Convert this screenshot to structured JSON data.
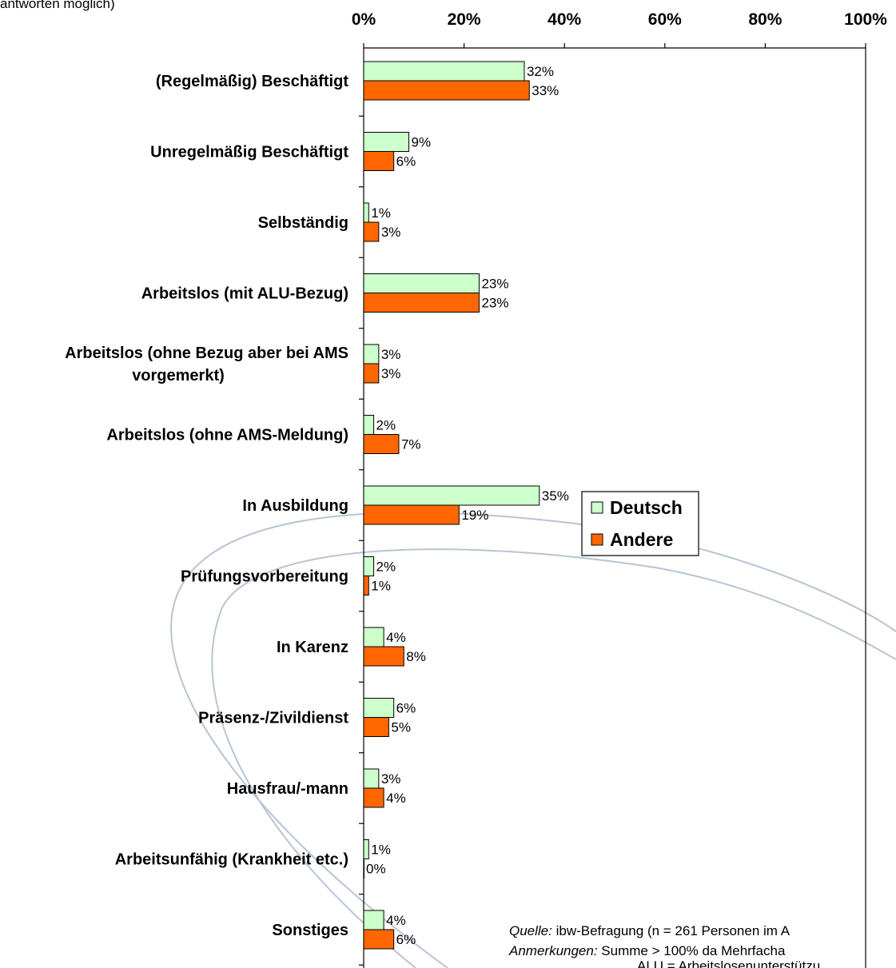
{
  "top_text": "antworten möglich)",
  "chart_data": {
    "type": "bar",
    "orientation": "horizontal",
    "xlim": [
      0,
      100
    ],
    "ticks": [
      "0%",
      "20%",
      "40%",
      "60%",
      "80%",
      "100%"
    ],
    "categories": [
      [
        "(Regelmäßig) Beschäftigt"
      ],
      [
        "Unregelmäßig Beschäftigt"
      ],
      [
        "Selbständig"
      ],
      [
        "Arbeitslos (mit ALU-Bezug)"
      ],
      [
        "Arbeitslos (ohne Bezug aber bei AMS",
        "vorgemerkt)"
      ],
      [
        "Arbeitslos (ohne AMS-Meldung)"
      ],
      [
        "In Ausbildung"
      ],
      [
        "Prüfungsvorbereitung"
      ],
      [
        "In Karenz"
      ],
      [
        "Präsenz-/Zivildienst"
      ],
      [
        "Hausfrau/-mann"
      ],
      [
        "Arbeitsunfähig (Krankheit etc.)"
      ],
      [
        "Sonstiges"
      ]
    ],
    "series": [
      {
        "name": "Deutsch",
        "color": "#ccffcc",
        "values": [
          32,
          9,
          1,
          23,
          3,
          2,
          35,
          2,
          4,
          6,
          3,
          1,
          4
        ],
        "labels": [
          "32%",
          "9%",
          "1%",
          "23%",
          "3%",
          "2%",
          "35%",
          "2%",
          "4%",
          "6%",
          "3%",
          "1%",
          "4%"
        ]
      },
      {
        "name": "Andere",
        "color": "#ff6600",
        "values": [
          33,
          6,
          3,
          23,
          3,
          7,
          19,
          1,
          8,
          5,
          4,
          0,
          6
        ],
        "labels": [
          "33%",
          "6%",
          "3%",
          "23%",
          "3%",
          "7%",
          "19%",
          "1%",
          "8%",
          "5%",
          "4%",
          "0%",
          "6%"
        ]
      }
    ],
    "legend_position": "right-middle"
  },
  "notes": {
    "source_prefix": "Quelle:",
    "source_text": " ibw-Befragung (n = 261 Personen im A",
    "remarks_prefix": "Anmerkungen:",
    "remarks_text": " Summe > 100% da Mehrfacha",
    "abbrev_text": "ALU = Arbeitslosenunterstützu"
  }
}
